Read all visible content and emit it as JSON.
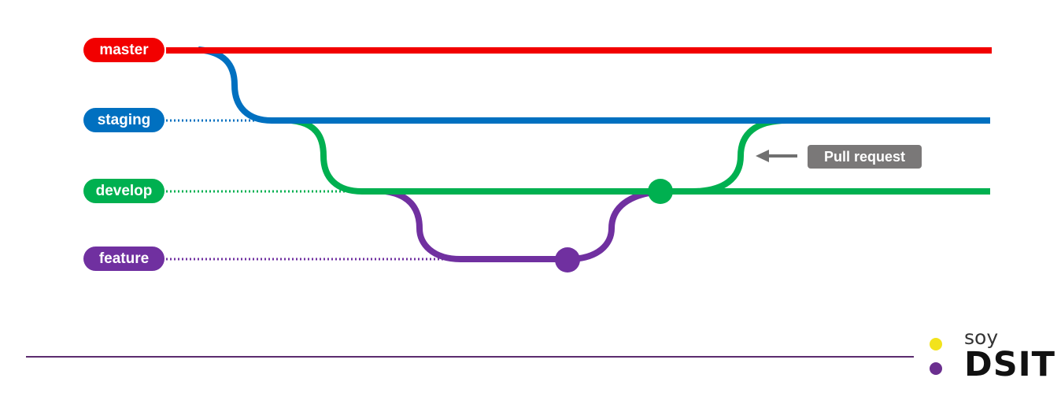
{
  "branches": {
    "master": {
      "label": "master",
      "color": "#f20000"
    },
    "staging": {
      "label": "staging",
      "color": "#0070c0"
    },
    "develop": {
      "label": "develop",
      "color": "#00b050"
    },
    "feature": {
      "label": "feature",
      "color": "#7030a0"
    }
  },
  "annotation": {
    "label": "Pull request",
    "color": "#7a7878",
    "arrow_color": "#707070"
  },
  "footer": {
    "line_color": "#5b2c6f"
  },
  "logo": {
    "top_text": "soy",
    "brand_text": "DSIT",
    "dot_top_color": "#f2e31c",
    "dot_bottom_color": "#6b2f8f"
  }
}
